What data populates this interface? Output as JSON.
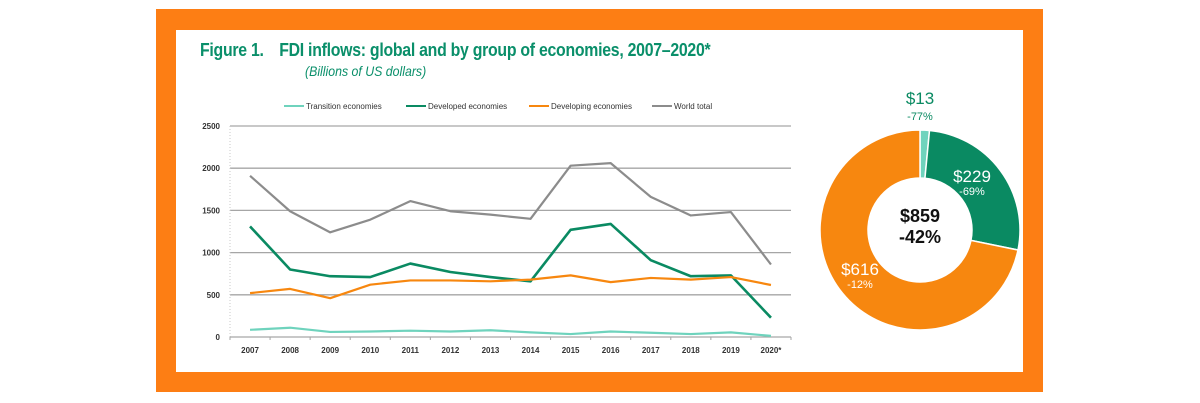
{
  "figure": {
    "number": "Figure 1.",
    "title": "FDI inflows: global and by group of economies, 2007–2020*",
    "subtitle": "(Billions of US dollars)"
  },
  "colors": {
    "frame": "#fd7e14",
    "title": "#0a8f6a",
    "transition": "#6fd3bd",
    "developed": "#0a8a62",
    "developing": "#f7870f",
    "world": "#8c8c8c",
    "grid": "#a6a6a6"
  },
  "chart_data": [
    {
      "type": "line",
      "title": "FDI inflows: global and by group of economies, 2007–2020*",
      "subtitle": "(Billions of US dollars)",
      "xlabel": "",
      "ylabel": "",
      "categories": [
        "2007",
        "2008",
        "2009",
        "2010",
        "2011",
        "2012",
        "2013",
        "2014",
        "2015",
        "2016",
        "2017",
        "2018",
        "2019",
        "2020*"
      ],
      "ylim": [
        0,
        2500
      ],
      "yticks": [
        0,
        500,
        1000,
        1500,
        2000,
        2500
      ],
      "grid": true,
      "legend_position": "top",
      "series": [
        {
          "name": "Transition economies",
          "color_key": "transition",
          "values": [
            85,
            110,
            60,
            65,
            75,
            65,
            80,
            55,
            35,
            65,
            50,
            35,
            55,
            13
          ]
        },
        {
          "name": "Developed economies",
          "color_key": "developed",
          "values": [
            1310,
            800,
            720,
            710,
            870,
            770,
            710,
            660,
            1270,
            1340,
            910,
            720,
            730,
            229
          ]
        },
        {
          "name": "Developing economies",
          "color_key": "developing",
          "values": [
            520,
            570,
            460,
            620,
            670,
            670,
            660,
            680,
            730,
            650,
            700,
            680,
            710,
            616
          ]
        },
        {
          "name": "World total",
          "color_key": "world",
          "values": [
            1910,
            1490,
            1240,
            1390,
            1610,
            1490,
            1450,
            1400,
            2030,
            2060,
            1660,
            1440,
            1480,
            859
          ]
        }
      ]
    },
    {
      "type": "pie",
      "subtype": "donut",
      "title": "",
      "center_label": {
        "value": "$859",
        "change": "-42%"
      },
      "slices": [
        {
          "name": "Transition economies",
          "value": 13,
          "label": "$13",
          "change": "-77%",
          "color_key": "transition"
        },
        {
          "name": "Developed economies",
          "value": 229,
          "label": "$229",
          "change": "-69%",
          "color_key": "developed"
        },
        {
          "name": "Developing economies",
          "value": 616,
          "label": "$616",
          "change": "-12%",
          "color_key": "developing"
        }
      ]
    }
  ]
}
